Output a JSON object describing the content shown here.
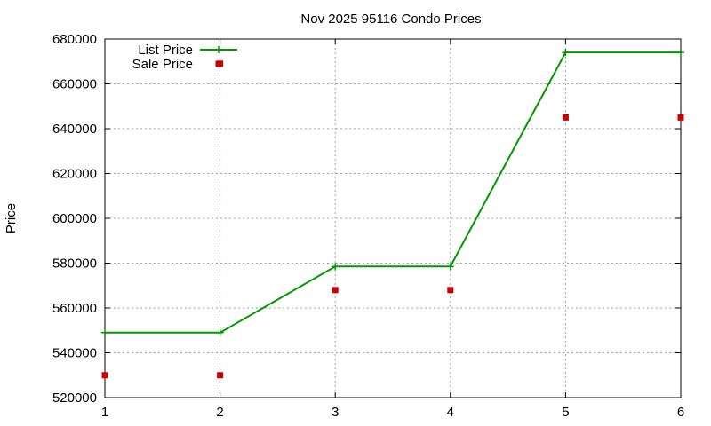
{
  "chart_data": {
    "type": "line",
    "title": "Nov 2025 95116 Condo Prices",
    "xlabel": "",
    "ylabel": "Price",
    "xlim": [
      1,
      6
    ],
    "ylim": [
      520000,
      680000
    ],
    "x_ticks": [
      "1",
      "2",
      "3",
      "4",
      "5",
      "6"
    ],
    "y_ticks": [
      "520000",
      "540000",
      "560000",
      "580000",
      "600000",
      "620000",
      "640000",
      "660000",
      "680000"
    ],
    "grid": true,
    "legend_position": "top-left",
    "series": [
      {
        "name": "List Price",
        "style": "linespoints",
        "color": "#009900",
        "x": [
          1,
          2,
          3,
          4,
          5,
          6
        ],
        "values": [
          549000,
          549000,
          578500,
          578500,
          674000,
          674000
        ]
      },
      {
        "name": "Sale Price",
        "style": "points",
        "color": "#cc0000",
        "x": [
          1,
          2,
          2,
          3,
          4,
          5,
          6
        ],
        "values": [
          530000,
          530000,
          669000,
          568000,
          568000,
          645000,
          645000
        ]
      }
    ]
  }
}
